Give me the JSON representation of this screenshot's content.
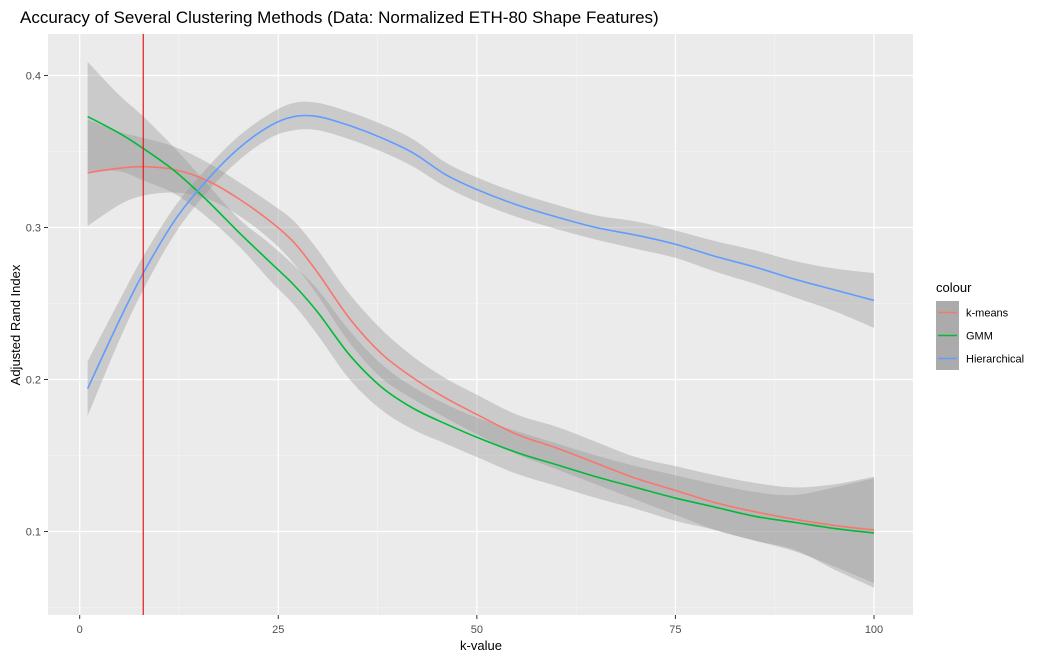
{
  "chart_data": {
    "type": "line",
    "title": "Accuracy of Several Clustering Methods (Data: Normalized ETH-80 Shape Features)",
    "xlabel": "k-value",
    "ylabel": "Adjusted Rand Index",
    "xlim": [
      -4,
      105
    ],
    "ylim": [
      0.05,
      0.43
    ],
    "x_ticks": [
      0,
      25,
      50,
      75,
      100
    ],
    "x_tick_labels": [
      "0",
      "25",
      "50",
      "75",
      "100"
    ],
    "y_ticks": [
      0.1,
      0.2,
      0.3,
      0.4
    ],
    "y_tick_labels": [
      "0.1",
      "0.2",
      "0.3",
      "0.4"
    ],
    "grid": true,
    "legend": {
      "title": "colour",
      "position": "right"
    },
    "vline": {
      "x": 8,
      "color": "#e31a1c"
    },
    "series": [
      {
        "name": "k-means",
        "color": "#F8766D",
        "x": [
          1,
          5,
          8,
          12,
          16,
          20,
          24,
          27,
          30,
          34,
          38,
          42,
          46,
          50,
          55,
          60,
          65,
          70,
          75,
          80,
          85,
          90,
          95,
          100
        ],
        "y": [
          0.336,
          0.339,
          0.34,
          0.338,
          0.331,
          0.319,
          0.304,
          0.29,
          0.27,
          0.24,
          0.217,
          0.201,
          0.188,
          0.177,
          0.164,
          0.155,
          0.145,
          0.135,
          0.127,
          0.119,
          0.113,
          0.108,
          0.104,
          0.101
        ],
        "lo": [
          0.301,
          0.315,
          0.321,
          0.323,
          0.319,
          0.308,
          0.292,
          0.276,
          0.255,
          0.224,
          0.201,
          0.187,
          0.175,
          0.164,
          0.151,
          0.141,
          0.131,
          0.121,
          0.111,
          0.101,
          0.094,
          0.087,
          0.077,
          0.066
        ],
        "hi": [
          0.371,
          0.363,
          0.359,
          0.353,
          0.343,
          0.33,
          0.316,
          0.304,
          0.285,
          0.256,
          0.233,
          0.215,
          0.201,
          0.19,
          0.177,
          0.169,
          0.159,
          0.149,
          0.143,
          0.137,
          0.132,
          0.129,
          0.131,
          0.136
        ]
      },
      {
        "name": "GMM",
        "color": "#00BA38",
        "x": [
          1,
          5,
          8,
          12,
          16,
          20,
          24,
          27,
          30,
          34,
          38,
          42,
          46,
          50,
          55,
          60,
          65,
          70,
          75,
          80,
          85,
          90,
          95,
          100
        ],
        "y": [
          0.373,
          0.362,
          0.352,
          0.337,
          0.318,
          0.297,
          0.277,
          0.262,
          0.244,
          0.216,
          0.195,
          0.181,
          0.171,
          0.162,
          0.152,
          0.144,
          0.136,
          0.129,
          0.122,
          0.116,
          0.11,
          0.106,
          0.102,
          0.099
        ],
        "lo": [
          0.337,
          0.337,
          0.331,
          0.322,
          0.307,
          0.288,
          0.265,
          0.249,
          0.229,
          0.2,
          0.18,
          0.167,
          0.158,
          0.149,
          0.138,
          0.13,
          0.122,
          0.115,
          0.107,
          0.101,
          0.094,
          0.088,
          0.075,
          0.063
        ],
        "hi": [
          0.409,
          0.387,
          0.373,
          0.352,
          0.329,
          0.306,
          0.289,
          0.275,
          0.259,
          0.232,
          0.21,
          0.195,
          0.184,
          0.175,
          0.166,
          0.158,
          0.15,
          0.143,
          0.137,
          0.131,
          0.126,
          0.124,
          0.129,
          0.135
        ]
      },
      {
        "name": "Hierarchical",
        "color": "#619CFF",
        "x": [
          1,
          5,
          8,
          12,
          16,
          20,
          24,
          27,
          30,
          34,
          38,
          42,
          46,
          50,
          55,
          60,
          65,
          70,
          75,
          80,
          85,
          90,
          95,
          100
        ],
        "y": [
          0.194,
          0.239,
          0.27,
          0.305,
          0.331,
          0.352,
          0.367,
          0.373,
          0.373,
          0.367,
          0.359,
          0.349,
          0.335,
          0.325,
          0.315,
          0.307,
          0.3,
          0.295,
          0.289,
          0.281,
          0.274,
          0.266,
          0.259,
          0.252
        ],
        "lo": [
          0.176,
          0.226,
          0.259,
          0.296,
          0.323,
          0.344,
          0.359,
          0.364,
          0.364,
          0.358,
          0.35,
          0.34,
          0.327,
          0.317,
          0.307,
          0.299,
          0.292,
          0.286,
          0.28,
          0.271,
          0.263,
          0.254,
          0.245,
          0.234
        ],
        "hi": [
          0.212,
          0.252,
          0.281,
          0.314,
          0.339,
          0.36,
          0.375,
          0.382,
          0.382,
          0.376,
          0.368,
          0.358,
          0.343,
          0.333,
          0.323,
          0.315,
          0.308,
          0.304,
          0.298,
          0.291,
          0.285,
          0.278,
          0.273,
          0.27
        ]
      }
    ]
  }
}
